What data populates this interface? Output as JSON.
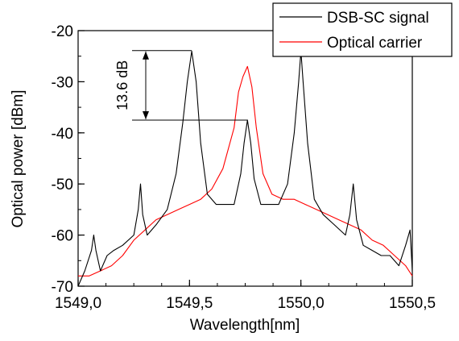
{
  "chart_data": {
    "type": "line",
    "title": "",
    "xlabel": "Wavelength[nm]",
    "ylabel": "Optical power [dBm]",
    "xlim": [
      1549.0,
      1550.5
    ],
    "ylim": [
      -70,
      -20
    ],
    "x_ticks": [
      1549.0,
      1549.5,
      1550.0,
      1550.5
    ],
    "x_tick_labels": [
      "1549,0",
      "1549,5",
      "1550,0",
      "1550,5"
    ],
    "y_ticks": [
      -70,
      -60,
      -50,
      -40,
      -30,
      -20
    ],
    "y_tick_labels": [
      "-70",
      "-60",
      "-50",
      "-40",
      "-30",
      "-20"
    ],
    "grid": false,
    "legend_position": "top-right",
    "series": [
      {
        "name": "DSB-SC signal",
        "color": "#000000",
        "x": [
          1549.0,
          1549.03,
          1549.06,
          1549.07,
          1549.08,
          1549.1,
          1549.13,
          1549.16,
          1549.2,
          1549.25,
          1549.27,
          1549.28,
          1549.29,
          1549.31,
          1549.35,
          1549.4,
          1549.44,
          1549.47,
          1549.49,
          1549.51,
          1549.53,
          1549.55,
          1549.58,
          1549.62,
          1549.66,
          1549.7,
          1549.73,
          1549.745,
          1549.76,
          1549.775,
          1549.79,
          1549.82,
          1549.86,
          1549.9,
          1549.94,
          1549.97,
          1549.99,
          1550.0,
          1550.01,
          1550.03,
          1550.06,
          1550.1,
          1550.15,
          1550.2,
          1550.22,
          1550.235,
          1550.25,
          1550.28,
          1550.32,
          1550.36,
          1550.4,
          1550.44,
          1550.47,
          1550.49,
          1550.5
        ],
        "y": [
          -70,
          -67,
          -63,
          -60,
          -63,
          -67,
          -64,
          -63,
          -62,
          -60,
          -55,
          -50,
          -56,
          -60,
          -58,
          -55,
          -48,
          -38,
          -30,
          -24,
          -30,
          -42,
          -52,
          -54,
          -54,
          -54,
          -48,
          -42,
          -37.5,
          -42,
          -49,
          -54,
          -54,
          -54,
          -50,
          -40,
          -30,
          -24,
          -30,
          -42,
          -53,
          -56,
          -58,
          -60,
          -56,
          -50,
          -57,
          -62,
          -63,
          -64,
          -64,
          -66,
          -62,
          -59,
          -67
        ]
      },
      {
        "name": "Optical carrier",
        "color": "#ff0000",
        "x": [
          1549.0,
          1549.05,
          1549.1,
          1549.15,
          1549.2,
          1549.25,
          1549.3,
          1549.35,
          1549.4,
          1549.45,
          1549.5,
          1549.55,
          1549.6,
          1549.65,
          1549.7,
          1549.72,
          1549.74,
          1549.76,
          1549.78,
          1549.8,
          1549.83,
          1549.87,
          1549.92,
          1549.97,
          1550.02,
          1550.07,
          1550.12,
          1550.17,
          1550.22,
          1550.27,
          1550.32,
          1550.37,
          1550.42,
          1550.47,
          1550.5
        ],
        "y": [
          -68,
          -68,
          -67,
          -66,
          -64,
          -61,
          -59,
          -57,
          -56,
          -55,
          -54,
          -53,
          -51,
          -47,
          -39,
          -32,
          -29,
          -27,
          -31,
          -39,
          -48,
          -52,
          -53,
          -53,
          -54,
          -55,
          -56,
          -57,
          -58,
          -59,
          -61,
          -62,
          -64,
          -66,
          -68
        ]
      }
    ],
    "annotation": {
      "text": "13.6 dB",
      "from_y": -23.9,
      "to_y": -37.5
    }
  }
}
